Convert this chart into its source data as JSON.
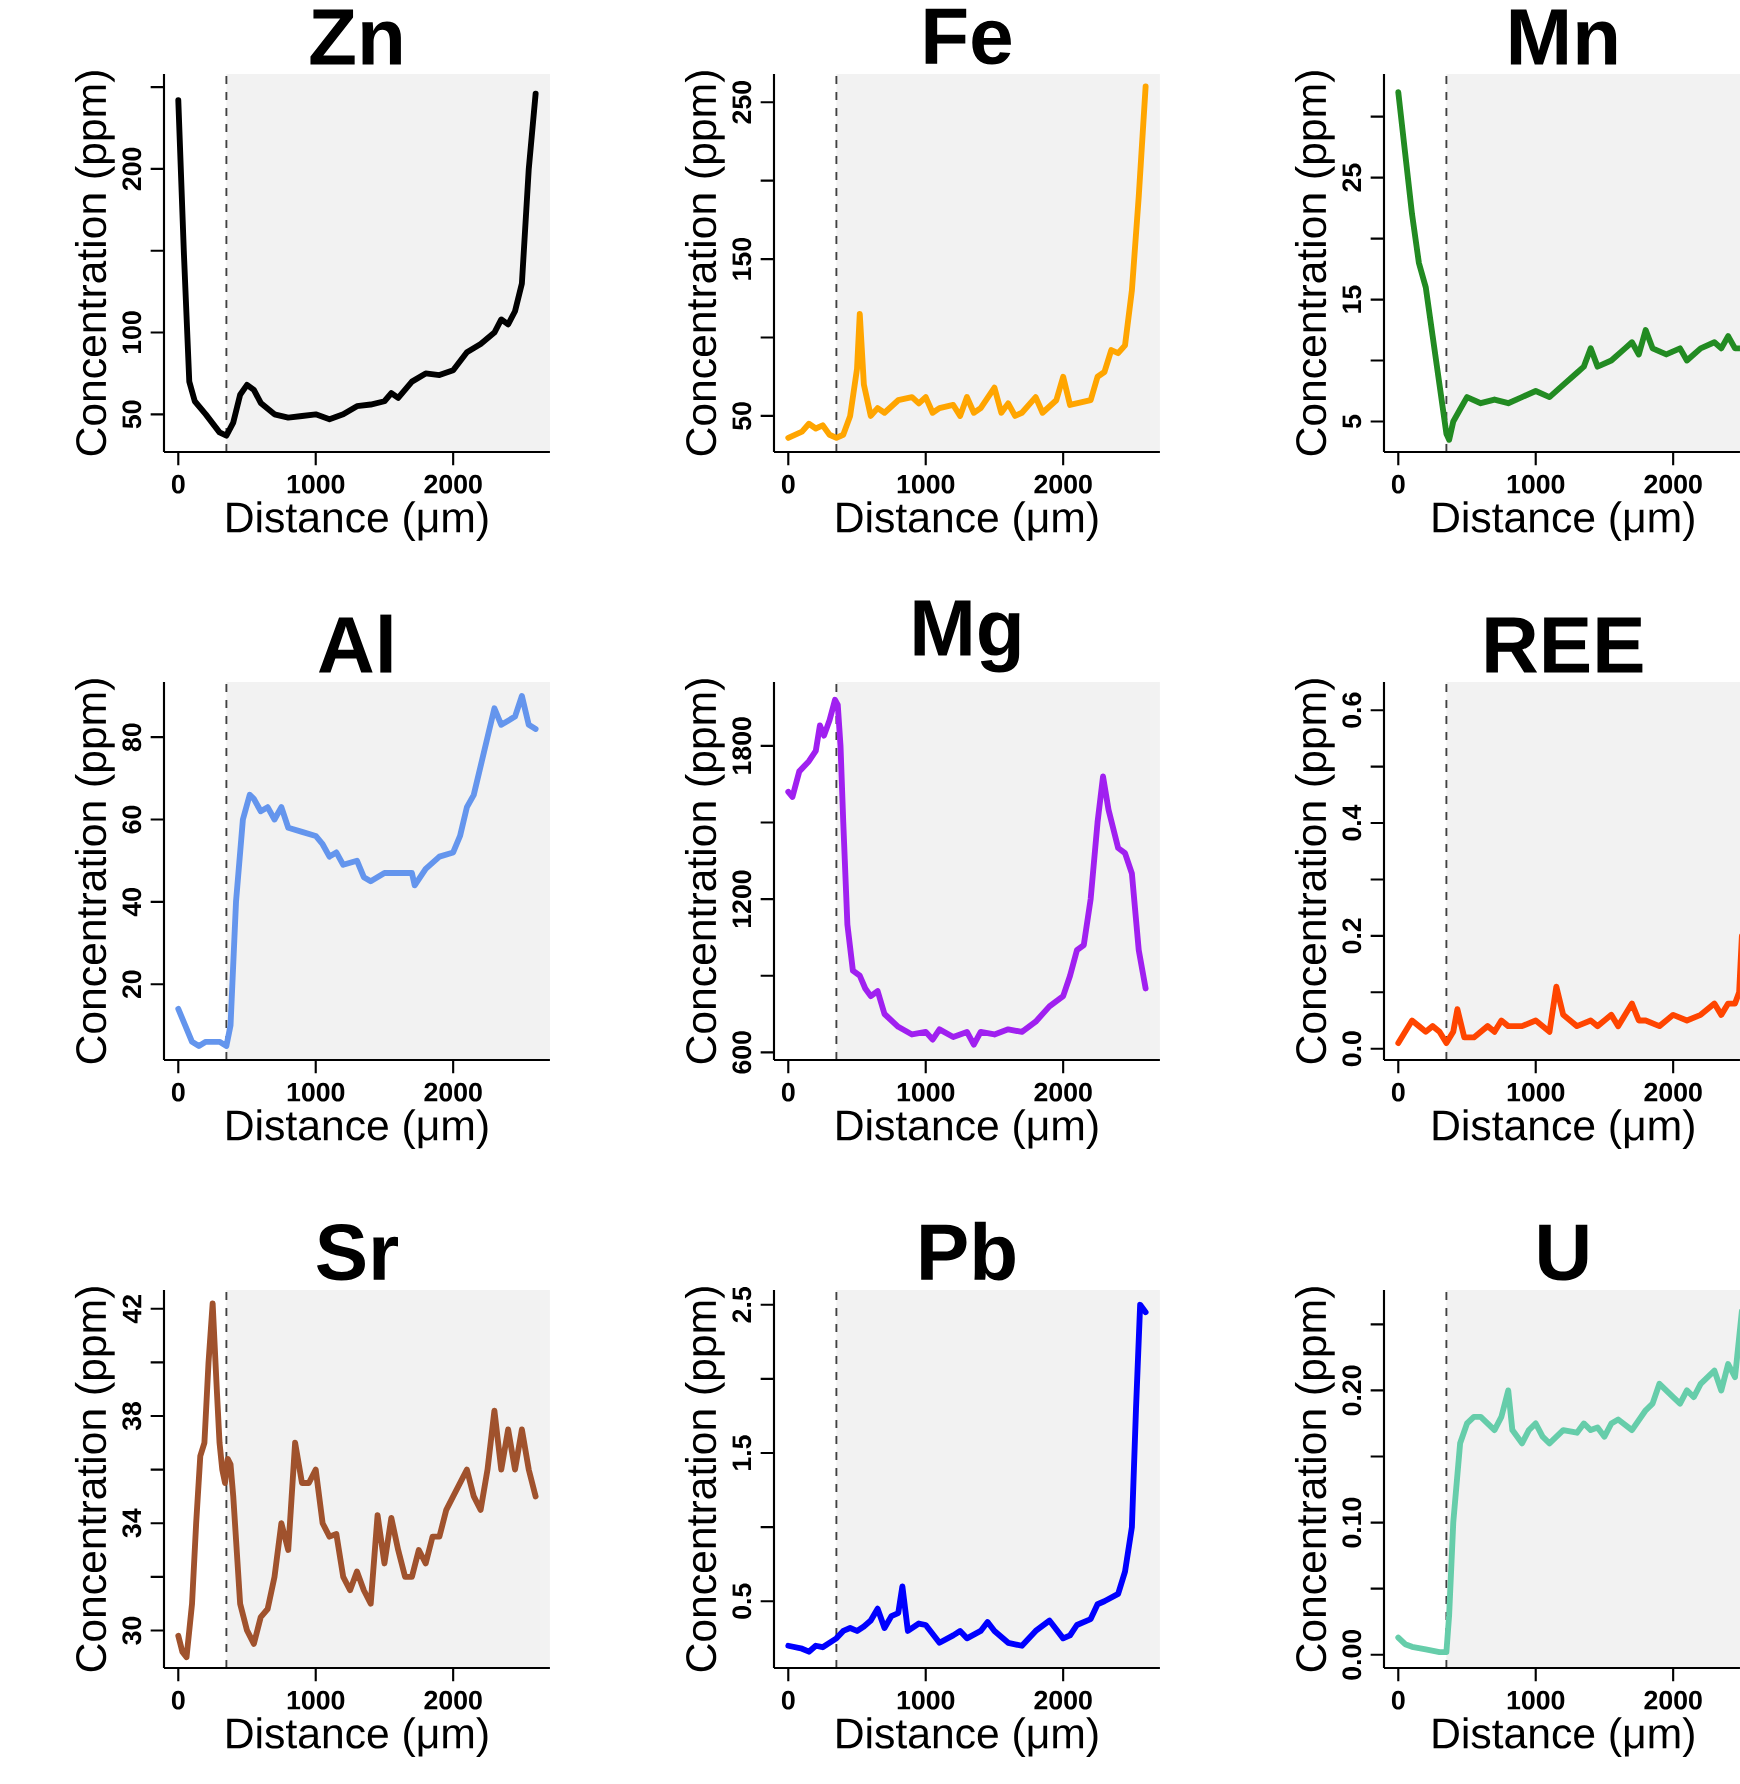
{
  "chart_data": [
    {
      "type": "line",
      "title": "Zn",
      "xlabel": "Distance (μm)",
      "ylabel": "Concentration (ppm)",
      "xlim": [
        -104,
        2704
      ],
      "ylim": [
        27,
        258
      ],
      "xticks": [
        0,
        1000,
        2000
      ],
      "yticks": [
        50,
        100,
        {
          "value": 150,
          "label": null
        },
        200,
        {
          "value": 250,
          "label": null
        }
      ],
      "color": "#000000",
      "x": [
        0,
        40,
        80,
        120,
        200,
        300,
        350,
        400,
        450,
        500,
        550,
        600,
        700,
        800,
        900,
        1000,
        1100,
        1200,
        1300,
        1400,
        1500,
        1550,
        1600,
        1700,
        1800,
        1900,
        2000,
        2100,
        2200,
        2300,
        2350,
        2400,
        2450,
        2500,
        2550,
        2600
      ],
      "values": [
        242,
        150,
        70,
        58,
        50,
        39,
        37,
        45,
        62,
        68,
        65,
        57,
        50,
        48,
        49,
        50,
        47,
        50,
        55,
        56,
        58,
        63,
        60,
        70,
        75,
        74,
        77,
        88,
        93,
        100,
        108,
        105,
        113,
        130,
        200,
        246
      ],
      "ref_lines": [
        {
          "axis": "x",
          "value": 350,
          "line_style": "dashed",
          "color": "#404040"
        }
      ],
      "bands": [
        {
          "axis": "x",
          "from": 350,
          "to": 2704,
          "color": "#f2f2f2"
        }
      ]
    },
    {
      "type": "line",
      "title": "Fe",
      "xlabel": "Distance (μm)",
      "ylabel": "Concentration (ppm)",
      "xlim": [
        -104,
        2704
      ],
      "ylim": [
        27,
        268
      ],
      "xticks": [
        0,
        1000,
        2000
      ],
      "yticks": [
        50,
        {
          "value": 100,
          "label": null
        },
        150,
        {
          "value": 200,
          "label": null
        },
        250
      ],
      "color": "#ffa500",
      "x": [
        0,
        100,
        150,
        200,
        250,
        300,
        350,
        400,
        450,
        500,
        520,
        550,
        600,
        650,
        700,
        800,
        900,
        950,
        1000,
        1050,
        1100,
        1200,
        1250,
        1300,
        1350,
        1400,
        1500,
        1550,
        1600,
        1650,
        1700,
        1800,
        1850,
        1950,
        2000,
        2050,
        2100,
        2200,
        2250,
        2300,
        2350,
        2400,
        2450,
        2500,
        2550,
        2600
      ],
      "values": [
        36,
        40,
        45,
        42,
        44,
        38,
        36,
        38,
        50,
        80,
        115,
        70,
        50,
        55,
        52,
        60,
        62,
        58,
        62,
        52,
        55,
        57,
        50,
        62,
        52,
        55,
        68,
        52,
        58,
        50,
        52,
        62,
        52,
        60,
        75,
        57,
        58,
        60,
        75,
        78,
        92,
        90,
        95,
        130,
        190,
        260
      ],
      "ref_lines": [
        {
          "axis": "x",
          "value": 350,
          "line_style": "dashed",
          "color": "#404040"
        }
      ],
      "bands": [
        {
          "axis": "x",
          "from": 350,
          "to": 2704,
          "color": "#f2f2f2"
        }
      ]
    },
    {
      "type": "line",
      "title": "Mn",
      "xlabel": "Distance (μm)",
      "ylabel": "Concentration (ppm)",
      "xlim": [
        -104,
        2505
      ],
      "ylim": [
        2.5,
        33.5
      ],
      "xticks": [
        0,
        1000,
        2000
      ],
      "yticks": [
        5,
        {
          "value": 10,
          "label": null
        },
        15,
        {
          "value": 20,
          "label": null
        },
        25,
        {
          "value": 30,
          "label": null
        }
      ],
      "color": "#228b22",
      "x": [
        0,
        50,
        100,
        150,
        200,
        250,
        300,
        350,
        370,
        400,
        450,
        500,
        600,
        700,
        800,
        900,
        1000,
        1100,
        1200,
        1300,
        1350,
        1400,
        1450,
        1550,
        1650,
        1700,
        1750,
        1800,
        1850,
        1950,
        2050,
        2100,
        2200,
        2300,
        2350,
        2400,
        2450,
        2500
      ],
      "values": [
        32,
        27,
        22,
        18,
        16,
        12,
        8,
        4,
        3.5,
        5,
        6,
        7,
        6.5,
        6.8,
        6.5,
        7,
        7.5,
        7,
        8,
        9,
        9.5,
        11,
        9.5,
        10,
        11,
        11.5,
        10.5,
        12.5,
        11,
        10.5,
        11,
        10,
        11,
        11.5,
        11,
        12,
        11,
        11
      ],
      "ref_lines": [
        {
          "axis": "x",
          "value": 350,
          "line_style": "dashed",
          "color": "#404040"
        }
      ],
      "bands": [
        {
          "axis": "x",
          "from": 350,
          "to": 2505,
          "color": "#f2f2f2"
        }
      ]
    },
    {
      "type": "line",
      "title": "Al",
      "xlabel": "Distance (μm)",
      "ylabel": "Concentration (ppm)",
      "xlim": [
        -104,
        2704
      ],
      "ylim": [
        1.6,
        93.4
      ],
      "xticks": [
        0,
        1000,
        2000
      ],
      "yticks": [
        20,
        40,
        60,
        80
      ],
      "color": "#6495ed",
      "x": [
        0,
        50,
        100,
        150,
        200,
        300,
        350,
        380,
        420,
        470,
        520,
        550,
        600,
        650,
        700,
        750,
        800,
        900,
        1000,
        1050,
        1100,
        1150,
        1200,
        1300,
        1350,
        1400,
        1500,
        1600,
        1700,
        1720,
        1800,
        1900,
        2000,
        2050,
        2100,
        2150,
        2250,
        2300,
        2350,
        2400,
        2450,
        2500,
        2550,
        2600
      ],
      "values": [
        14,
        10,
        6,
        5,
        6,
        6,
        5,
        10,
        40,
        60,
        66,
        65,
        62,
        63,
        60,
        63,
        58,
        57,
        56,
        54,
        51,
        52,
        49,
        50,
        46,
        45,
        47,
        47,
        47,
        44,
        48,
        51,
        52,
        56,
        63,
        66,
        80,
        87,
        83,
        84,
        85,
        90,
        83,
        82
      ],
      "ref_lines": [
        {
          "axis": "x",
          "value": 350,
          "line_style": "dashed",
          "color": "#404040"
        }
      ],
      "bands": [
        {
          "axis": "x",
          "from": 350,
          "to": 2704,
          "color": "#f2f2f2"
        }
      ]
    },
    {
      "type": "line",
      "title": "Mg",
      "xlabel": "Distance (μm)",
      "ylabel": "Concentration (ppm)",
      "xlim": [
        -104,
        2704
      ],
      "ylim": [
        570,
        2050
      ],
      "xticks": [
        0,
        1000,
        2000
      ],
      "yticks": [
        600,
        {
          "value": 900,
          "label": null
        },
        1200,
        {
          "value": 1500,
          "label": null
        },
        1800
      ],
      "color": "#a020f0",
      "x": [
        0,
        30,
        80,
        150,
        200,
        230,
        260,
        300,
        340,
        360,
        380,
        400,
        430,
        470,
        520,
        560,
        600,
        650,
        700,
        800,
        900,
        1000,
        1050,
        1100,
        1200,
        1300,
        1350,
        1400,
        1500,
        1600,
        1700,
        1800,
        1900,
        2000,
        2050,
        2100,
        2150,
        2200,
        2250,
        2290,
        2330,
        2400,
        2450,
        2500,
        2550,
        2600
      ],
      "values": [
        1620,
        1600,
        1700,
        1740,
        1780,
        1880,
        1840,
        1900,
        1980,
        1960,
        1800,
        1500,
        1100,
        920,
        900,
        850,
        820,
        840,
        750,
        700,
        670,
        680,
        650,
        690,
        660,
        680,
        630,
        680,
        670,
        690,
        680,
        720,
        780,
        820,
        900,
        1000,
        1020,
        1200,
        1500,
        1680,
        1550,
        1400,
        1380,
        1300,
        1000,
        850
      ],
      "ref_lines": [
        {
          "axis": "x",
          "value": 350,
          "line_style": "dashed",
          "color": "#404040"
        }
      ],
      "bands": [
        {
          "axis": "x",
          "from": 350,
          "to": 2704,
          "color": "#f2f2f2"
        }
      ]
    },
    {
      "type": "line",
      "title": "REE",
      "xlabel": "Distance (μm)",
      "ylabel": "Concentration (ppm)",
      "xlim": [
        -104,
        2505
      ],
      "ylim": [
        -0.02,
        0.65
      ],
      "xticks": [
        0,
        1000,
        2000
      ],
      "yticks": [
        {
          "value": 0,
          "label": "0.0"
        },
        {
          "value": 0.1,
          "label": null
        },
        0.2,
        {
          "value": 0.3,
          "label": null
        },
        0.4,
        {
          "value": 0.5,
          "label": null
        },
        0.6
      ],
      "color": "#ff4500",
      "x": [
        0,
        50,
        100,
        150,
        200,
        250,
        300,
        350,
        400,
        430,
        480,
        550,
        650,
        700,
        750,
        800,
        900,
        1000,
        1100,
        1150,
        1200,
        1300,
        1400,
        1450,
        1550,
        1600,
        1700,
        1750,
        1800,
        1900,
        2000,
        2100,
        2200,
        2300,
        2350,
        2400,
        2450,
        2480,
        2500
      ],
      "values": [
        0.01,
        0.03,
        0.05,
        0.04,
        0.03,
        0.04,
        0.03,
        0.01,
        0.03,
        0.07,
        0.02,
        0.02,
        0.04,
        0.03,
        0.05,
        0.04,
        0.04,
        0.05,
        0.03,
        0.11,
        0.06,
        0.04,
        0.05,
        0.04,
        0.06,
        0.04,
        0.08,
        0.05,
        0.05,
        0.04,
        0.06,
        0.05,
        0.06,
        0.08,
        0.06,
        0.08,
        0.08,
        0.1,
        0.2
      ],
      "ref_lines": [
        {
          "axis": "x",
          "value": 350,
          "line_style": "dashed",
          "color": "#404040"
        }
      ],
      "bands": [
        {
          "axis": "x",
          "from": 350,
          "to": 2505,
          "color": "#f2f2f2"
        }
      ]
    },
    {
      "type": "line",
      "title": "Sr",
      "xlabel": "Distance (μm)",
      "ylabel": "Concentration (ppm)",
      "xlim": [
        -104,
        2704
      ],
      "ylim": [
        28.6,
        42.7
      ],
      "xticks": [
        0,
        1000,
        2000
      ],
      "yticks": [
        30,
        {
          "value": 32,
          "label": null
        },
        34,
        {
          "value": 36,
          "label": null
        },
        38,
        {
          "value": 40,
          "label": null
        },
        42
      ],
      "color": "#a0522d",
      "x": [
        0,
        30,
        60,
        100,
        130,
        160,
        190,
        220,
        250,
        280,
        300,
        320,
        340,
        360,
        380,
        400,
        450,
        500,
        550,
        600,
        650,
        700,
        750,
        800,
        850,
        900,
        950,
        1000,
        1050,
        1100,
        1150,
        1200,
        1250,
        1300,
        1350,
        1400,
        1450,
        1500,
        1550,
        1600,
        1650,
        1700,
        1750,
        1800,
        1850,
        1900,
        1950,
        2000,
        2100,
        2150,
        2200,
        2250,
        2300,
        2350,
        2400,
        2450,
        2500,
        2550,
        2600
      ],
      "values": [
        29.8,
        29.2,
        29.0,
        31,
        34,
        36.5,
        37,
        40,
        42.2,
        39,
        37,
        36,
        35.5,
        36.4,
        36.2,
        35,
        31,
        30,
        29.5,
        30.5,
        30.8,
        32,
        34,
        33,
        37,
        35.5,
        35.5,
        36,
        34,
        33.5,
        33.6,
        32,
        31.5,
        32.2,
        31.5,
        31,
        34.3,
        32.5,
        34.2,
        33,
        32,
        32,
        33,
        32.5,
        33.5,
        33.5,
        34.5,
        35,
        36,
        35,
        34.5,
        36,
        38.2,
        36,
        37.5,
        36,
        37.5,
        36,
        35
      ],
      "ref_lines": [
        {
          "axis": "x",
          "value": 350,
          "line_style": "dashed",
          "color": "#404040"
        }
      ],
      "bands": [
        {
          "axis": "x",
          "from": 350,
          "to": 2704,
          "color": "#f2f2f2"
        }
      ]
    },
    {
      "type": "line",
      "title": "Pb",
      "xlabel": "Distance (μm)",
      "ylabel": "Concentration (ppm)",
      "xlim": [
        -104,
        2704
      ],
      "ylim": [
        0.05,
        2.6
      ],
      "xticks": [
        0,
        1000,
        2000
      ],
      "yticks": [
        0.5,
        {
          "value": 1,
          "label": null
        },
        1.5,
        {
          "value": 2,
          "label": null
        },
        2.5
      ],
      "color": "#0000ff",
      "x": [
        0,
        100,
        150,
        200,
        250,
        300,
        350,
        400,
        450,
        500,
        550,
        600,
        650,
        700,
        750,
        800,
        830,
        870,
        950,
        1000,
        1100,
        1200,
        1250,
        1300,
        1400,
        1450,
        1500,
        1600,
        1700,
        1800,
        1900,
        2000,
        2050,
        2100,
        2200,
        2250,
        2300,
        2400,
        2450,
        2500,
        2530,
        2560,
        2600
      ],
      "values": [
        0.2,
        0.18,
        0.16,
        0.2,
        0.19,
        0.22,
        0.25,
        0.3,
        0.32,
        0.3,
        0.33,
        0.37,
        0.45,
        0.32,
        0.4,
        0.42,
        0.6,
        0.3,
        0.35,
        0.34,
        0.22,
        0.27,
        0.3,
        0.25,
        0.3,
        0.36,
        0.3,
        0.22,
        0.2,
        0.3,
        0.37,
        0.25,
        0.27,
        0.34,
        0.38,
        0.48,
        0.5,
        0.55,
        0.7,
        1.0,
        1.8,
        2.5,
        2.45
      ],
      "ref_lines": [
        {
          "axis": "x",
          "value": 350,
          "line_style": "dashed",
          "color": "#404040"
        }
      ],
      "bands": [
        {
          "axis": "x",
          "from": 350,
          "to": 2704,
          "color": "#f2f2f2"
        }
      ]
    },
    {
      "type": "line",
      "title": "U",
      "xlabel": "Distance (μm)",
      "ylabel": "Concentration (ppm)",
      "xlim": [
        -104,
        2505
      ],
      "ylim": [
        -0.01,
        0.276
      ],
      "xticks": [
        0,
        1000,
        2000
      ],
      "yticks": [
        {
          "value": 0,
          "label": "0.00"
        },
        {
          "value": 0.05,
          "label": null
        },
        {
          "value": 0.1,
          "label": "0.10"
        },
        {
          "value": 0.15,
          "label": null
        },
        {
          "value": 0.2,
          "label": "0.20"
        },
        {
          "value": 0.25,
          "label": null
        }
      ],
      "color": "#66cdaa",
      "x": [
        0,
        50,
        100,
        150,
        200,
        300,
        350,
        370,
        400,
        450,
        500,
        550,
        600,
        700,
        750,
        800,
        830,
        900,
        950,
        1000,
        1050,
        1100,
        1200,
        1300,
        1350,
        1400,
        1450,
        1500,
        1550,
        1600,
        1700,
        1800,
        1850,
        1900,
        1950,
        2000,
        2050,
        2100,
        2150,
        2200,
        2300,
        2350,
        2400,
        2450,
        2500
      ],
      "values": [
        0.013,
        0.008,
        0.006,
        0.005,
        0.004,
        0.002,
        0.002,
        0.03,
        0.1,
        0.16,
        0.175,
        0.18,
        0.18,
        0.17,
        0.18,
        0.2,
        0.17,
        0.16,
        0.17,
        0.175,
        0.165,
        0.16,
        0.17,
        0.168,
        0.175,
        0.17,
        0.172,
        0.165,
        0.175,
        0.178,
        0.17,
        0.185,
        0.19,
        0.205,
        0.2,
        0.195,
        0.19,
        0.2,
        0.195,
        0.205,
        0.215,
        0.2,
        0.22,
        0.21,
        0.26
      ],
      "ref_lines": [
        {
          "axis": "x",
          "value": 350,
          "line_style": "dashed",
          "color": "#404040"
        }
      ],
      "bands": [
        {
          "axis": "x",
          "from": 350,
          "to": 2505,
          "color": "#f2f2f2"
        }
      ]
    }
  ]
}
